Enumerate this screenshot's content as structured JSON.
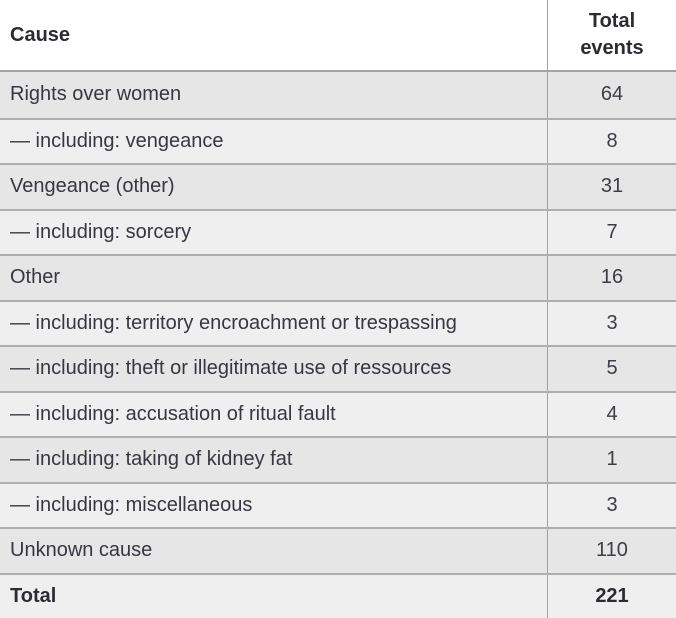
{
  "chart_data": {
    "type": "table",
    "title": "",
    "columns": [
      "Cause",
      "Total events"
    ],
    "rows": [
      {
        "cause": "Rights over women",
        "total": "64"
      },
      {
        "cause": "— including: vengeance",
        "total": "8"
      },
      {
        "cause": "Vengeance (other)",
        "total": "31"
      },
      {
        "cause": "— including: sorcery",
        "total": "7"
      },
      {
        "cause": "Other",
        "total": "16"
      },
      {
        "cause": "— including: territory encroachment or trespassing",
        "total": "3"
      },
      {
        "cause": "— including: theft or illegitimate use of ressources",
        "total": "5"
      },
      {
        "cause": "— including: accusation of ritual fault",
        "total": "4"
      },
      {
        "cause": "— including: taking of kidney fat",
        "total": "1"
      },
      {
        "cause": "— including: miscellaneous",
        "total": "3"
      },
      {
        "cause": "Unknown cause",
        "total": "110"
      },
      {
        "cause": "Total",
        "total": "221"
      }
    ],
    "layout": {
      "grid": "horizontal-separators",
      "row_shading": "alternating"
    }
  },
  "colors": {
    "header_background": "#ffffff",
    "row_dark": "#e6e6e6",
    "row_light": "#efefef",
    "border": "#a2a2a2",
    "text": "#363740",
    "header_text": "#2b2c33"
  }
}
